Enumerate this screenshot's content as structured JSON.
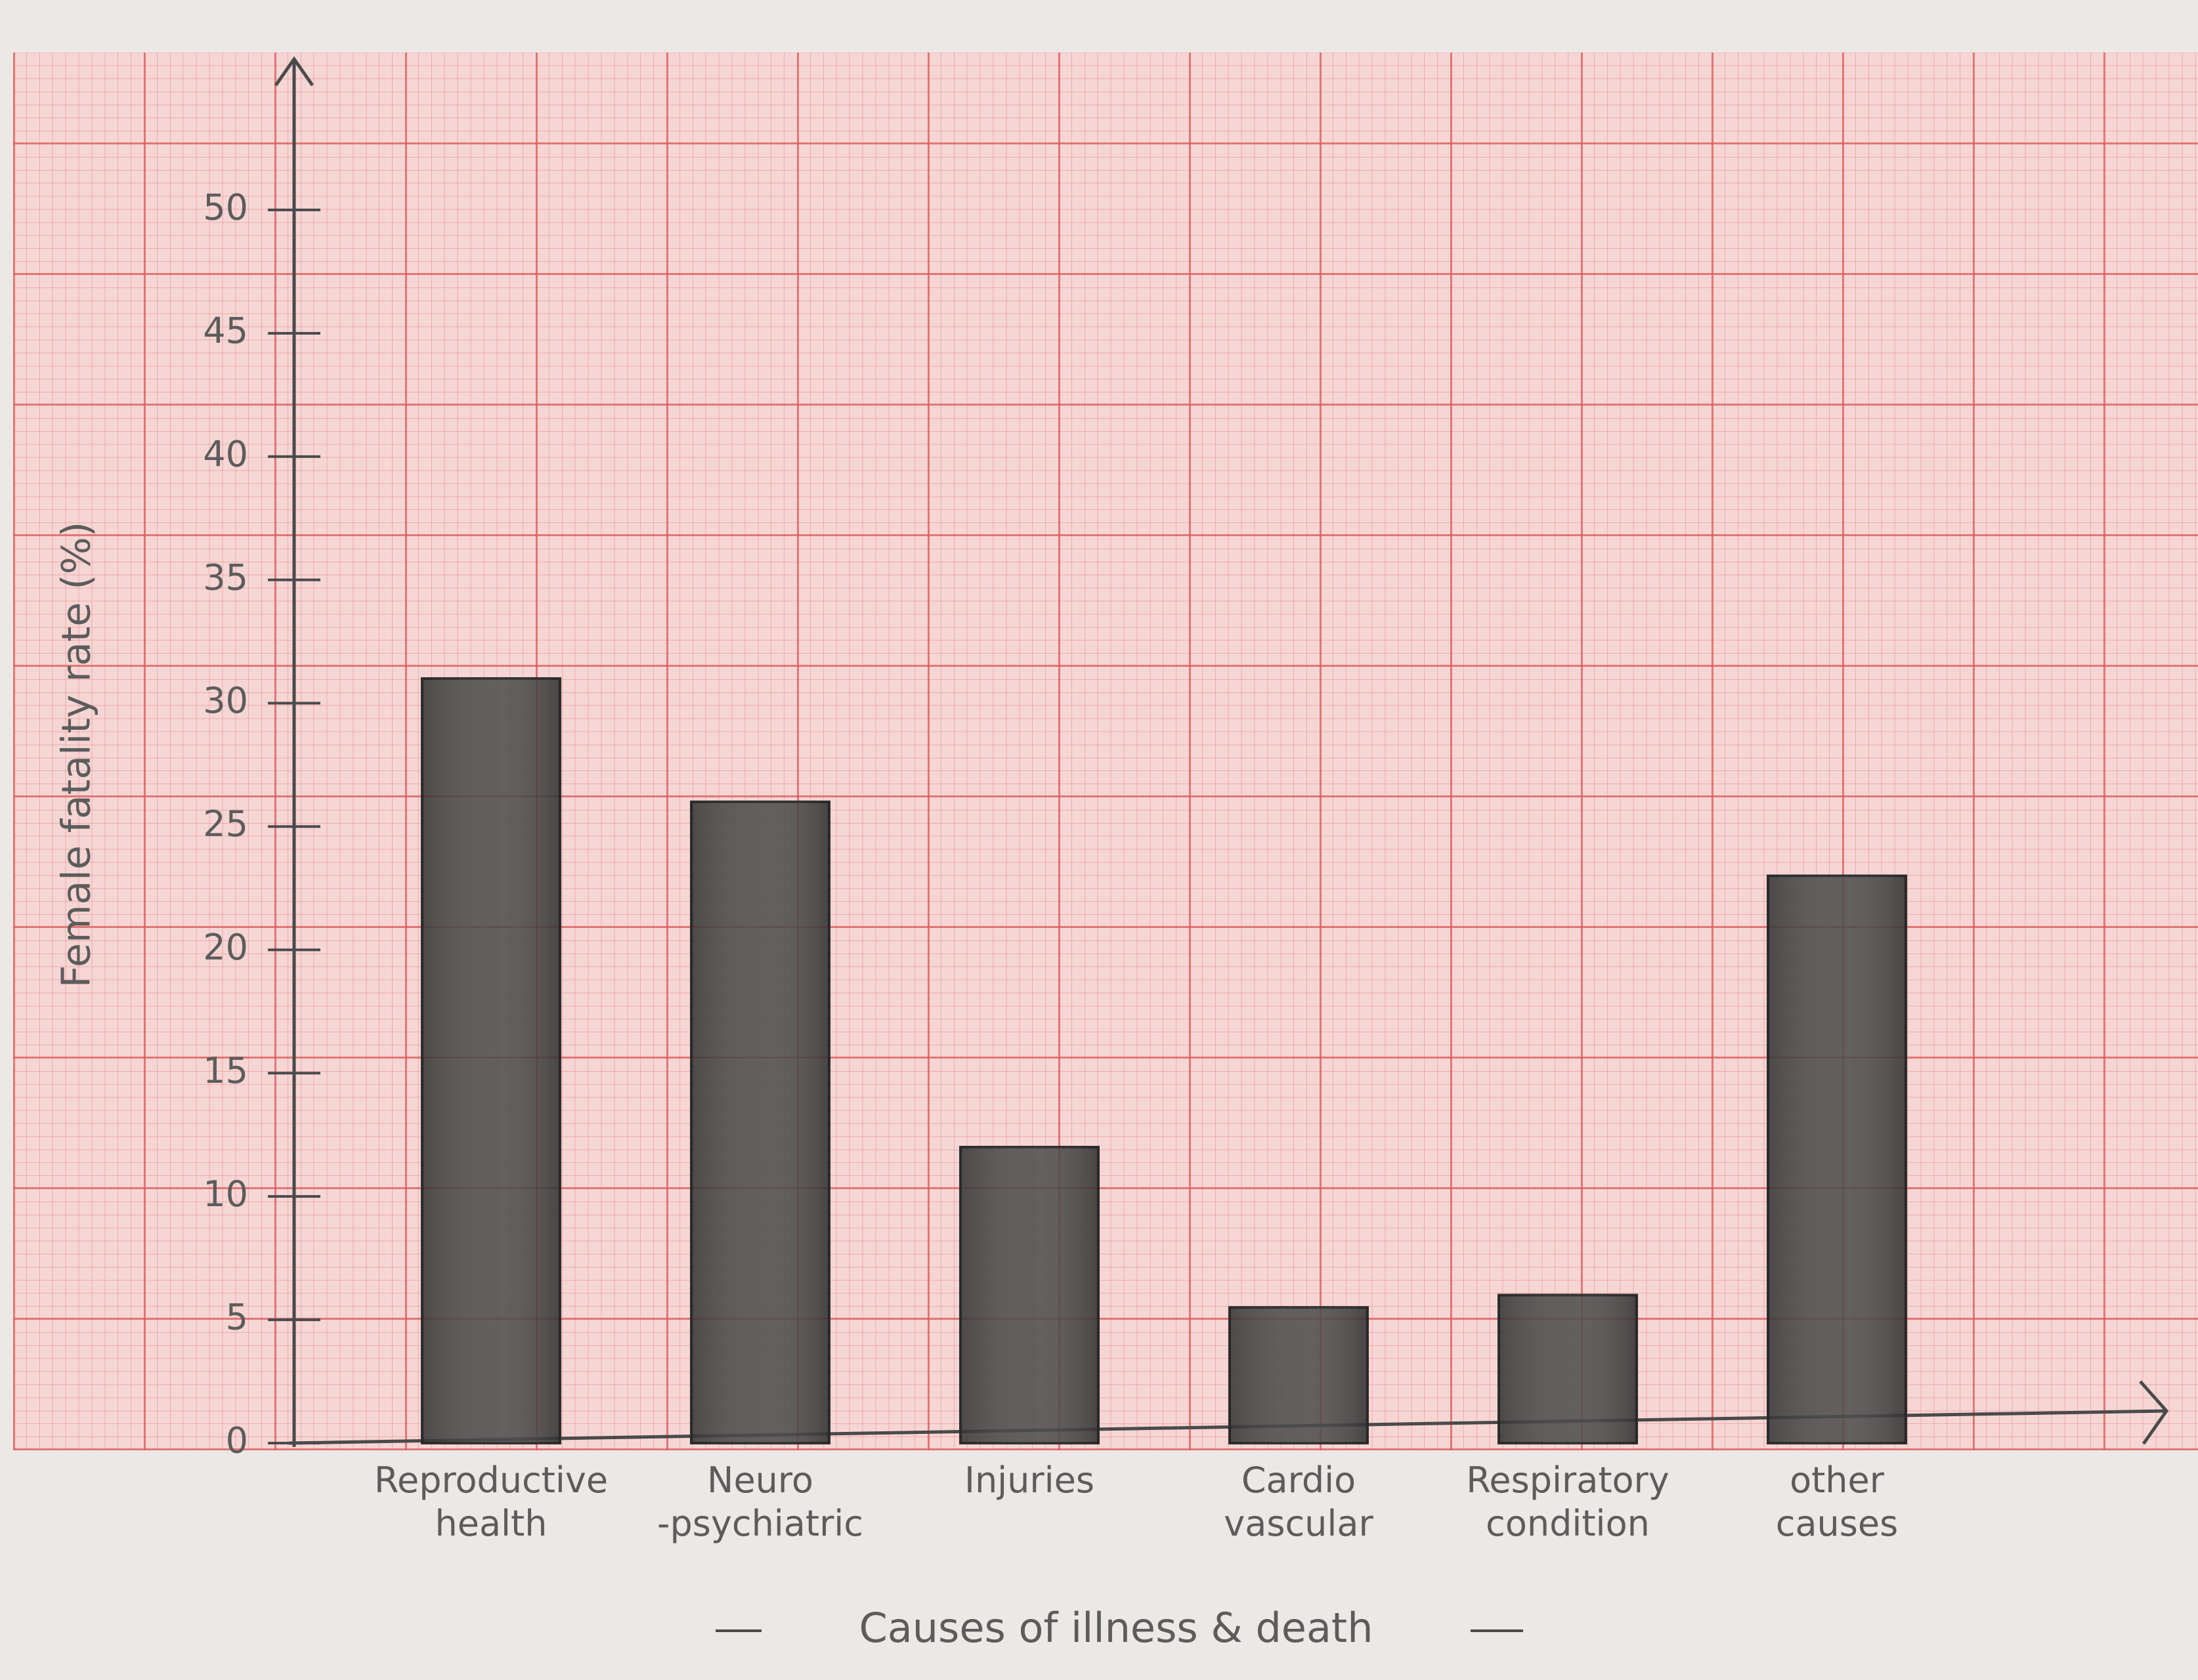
{
  "chart_data": {
    "type": "bar",
    "x_label": "Causes of illness & death",
    "y_label": "Female fatality rate (%)",
    "categories": [
      "Reproductive health",
      "Neuro -psychiatric",
      "Injuries",
      "Cardio vascular",
      "Respiratory condition",
      "other causes"
    ],
    "values": [
      31,
      26,
      12,
      5.5,
      6,
      23
    ],
    "color": "#3f3f3f",
    "ylim": [
      0,
      55
    ],
    "yticks": [
      0,
      5,
      10,
      15,
      20,
      25,
      30,
      35,
      40,
      45,
      50
    ]
  }
}
